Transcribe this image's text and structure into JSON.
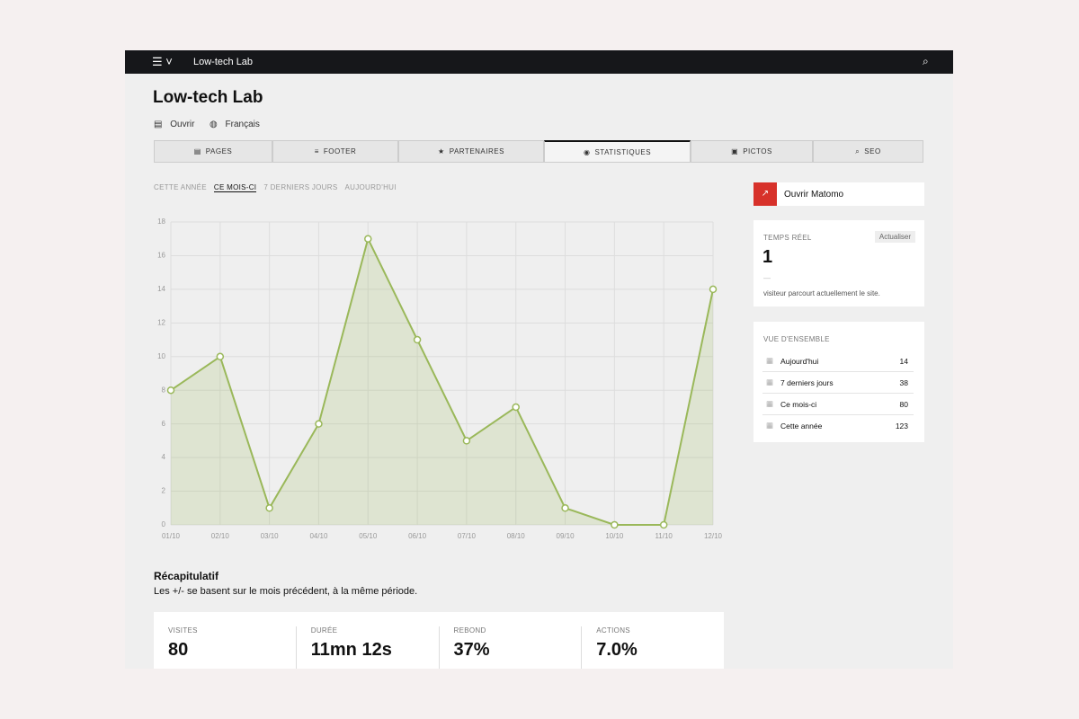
{
  "topbar": {
    "site": "Low-tech Lab"
  },
  "header": {
    "title": "Low-tech Lab",
    "links": [
      "Ouvrir",
      "Français"
    ]
  },
  "tabs": [
    "PAGES",
    "FOOTER",
    "PARTENAIRES",
    "STATISTIQUES",
    "PICTOS",
    "SEO"
  ],
  "periods": [
    "CETTE ANNÉE",
    "CE MOIS-CI",
    "7 DERNIERS JOURS",
    "AUJOURD'HUI"
  ],
  "chart_data": {
    "type": "line",
    "categories": [
      "01/10",
      "02/10",
      "03/10",
      "04/10",
      "05/10",
      "06/10",
      "07/10",
      "08/10",
      "09/10",
      "10/10",
      "11/10",
      "12/10"
    ],
    "values": [
      8,
      10,
      1,
      6,
      17,
      11,
      5,
      7,
      1,
      0,
      0,
      14
    ],
    "color": "#9ab85a",
    "ylim": [
      0,
      18
    ],
    "yticks": [
      0,
      2,
      4,
      6,
      8,
      10,
      12,
      14,
      16,
      18
    ],
    "grid": true
  },
  "summary": {
    "title": "Récapitulatif",
    "subtitle": "Les +/- se basent sur le mois précédent, à la même période.",
    "stats": [
      {
        "label": "VISITES",
        "value": "80"
      },
      {
        "label": "DURÉE",
        "value": "11mn 12s"
      },
      {
        "label": "REBOND",
        "value": "37%"
      },
      {
        "label": "ACTIONS",
        "value": "7.0%"
      }
    ]
  },
  "sidebar": {
    "matomo": "Ouvrir Matomo",
    "realtime": {
      "title": "TEMPS RÉEL",
      "button": "Actualiser",
      "count": 1,
      "dash": "—",
      "text": "visiteur parcourt actuellement le site."
    },
    "overview": {
      "title": "VUE D'ENSEMBLE",
      "rows": [
        {
          "label": "Aujourd'hui",
          "value": 14
        },
        {
          "label": "7 derniers jours",
          "value": 38
        },
        {
          "label": "Ce mois-ci",
          "value": 80
        },
        {
          "label": "Cette année",
          "value": 123
        }
      ]
    }
  }
}
